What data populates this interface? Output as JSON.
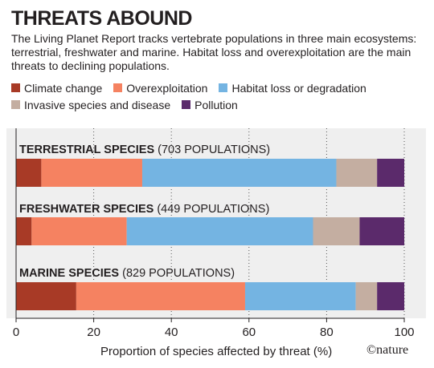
{
  "title": "THREATS ABOUND",
  "subtitle": "The Living Planet Report tracks vertebrate populations in three main ecosystems: terrestrial, freshwater and marine. Habitat loss and overexploitation are the main threats to declining populations.",
  "credit": "©nature",
  "colors": {
    "climate": "#a83a26",
    "overexploitation": "#f58261",
    "habitat": "#74b4e2",
    "invasive": "#c4aea1",
    "pollution": "#5b2a6b",
    "panel": "#efefef"
  },
  "chart_data": {
    "type": "bar",
    "orientation": "horizontal",
    "stacked": true,
    "categories": [
      "TERRESTRIAL SPECIES",
      "FRESHWATER SPECIES",
      "MARINE SPECIES"
    ],
    "category_notes": [
      "(703 POPULATIONS)",
      "(449 POPULATIONS)",
      "(829 POPULATIONS)"
    ],
    "series": [
      {
        "name": "Climate change",
        "color_key": "climate",
        "values": [
          6.5,
          4,
          15.5
        ]
      },
      {
        "name": "Overexploitation",
        "color_key": "overexploitation",
        "values": [
          26,
          24.5,
          43.5
        ]
      },
      {
        "name": "Habitat loss or degradation",
        "color_key": "habitat",
        "values": [
          50,
          48,
          28.5
        ]
      },
      {
        "name": "Invasive species and disease",
        "color_key": "invasive",
        "values": [
          10.5,
          12,
          5.5
        ]
      },
      {
        "name": "Pollution",
        "color_key": "pollution",
        "values": [
          7,
          11.5,
          7
        ]
      }
    ],
    "xlabel": "Proportion of species affected by threat (%)",
    "xlim": [
      0,
      100
    ],
    "xticks": [
      0,
      20,
      40,
      60,
      80,
      100
    ],
    "grid": "dotted vertical",
    "legend_position": "top"
  }
}
